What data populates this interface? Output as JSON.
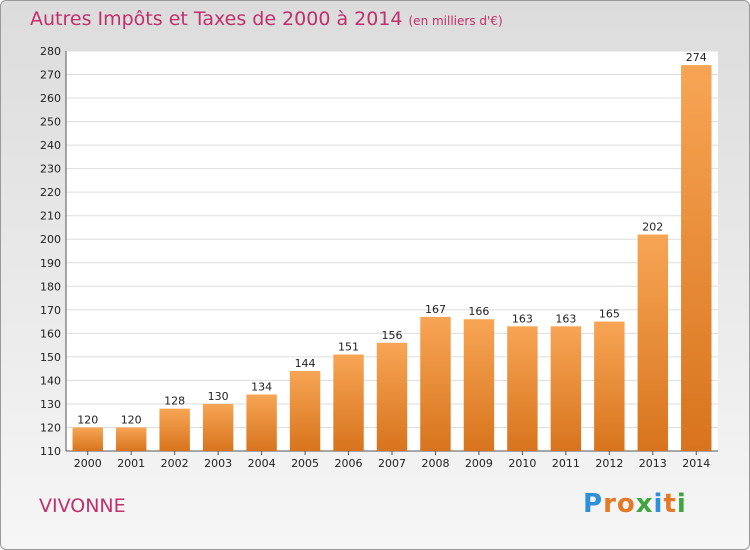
{
  "chart_data": {
    "type": "bar",
    "title": "Autres Impôts et Taxes de 2000 à 2014",
    "unit_label": "(en milliers d'€)",
    "categories": [
      "2000",
      "2001",
      "2002",
      "2003",
      "2004",
      "2005",
      "2006",
      "2007",
      "2008",
      "2009",
      "2010",
      "2011",
      "2012",
      "2013",
      "2014"
    ],
    "values": [
      120,
      120,
      128,
      130,
      134,
      144,
      151,
      156,
      167,
      166,
      163,
      163,
      165,
      202,
      274
    ],
    "ylim": [
      110,
      280
    ],
    "yticks": [
      110,
      120,
      130,
      140,
      150,
      160,
      170,
      180,
      190,
      200,
      210,
      220,
      230,
      240,
      250,
      260,
      270,
      280
    ],
    "grid": true,
    "bar_color": "#f0923a"
  },
  "footer": {
    "place": "VIVONNE"
  },
  "logo": {
    "letters": [
      {
        "ch": "P",
        "color": "#2f8fd8"
      },
      {
        "ch": "r",
        "color": "#e47a26"
      },
      {
        "ch": "o",
        "color": "#e47a26"
      },
      {
        "ch": "x",
        "color": "#3fa63f"
      },
      {
        "ch": "i",
        "color": "#2f8fd8"
      },
      {
        "ch": "t",
        "color": "#e47a26"
      },
      {
        "ch": "i",
        "color": "#3fa63f"
      }
    ]
  }
}
